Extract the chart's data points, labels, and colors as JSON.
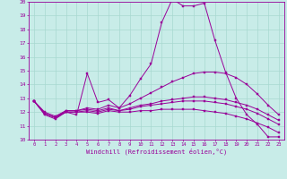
{
  "xlabel": "Windchill (Refroidissement éolien,°C)",
  "background_color": "#c8ece8",
  "line_color": "#990099",
  "grid_color": "#a8d8d0",
  "xlim": [
    -0.5,
    23.5
  ],
  "ylim": [
    10,
    20
  ],
  "xticks": [
    0,
    1,
    2,
    3,
    4,
    5,
    6,
    7,
    8,
    9,
    10,
    11,
    12,
    13,
    14,
    15,
    16,
    17,
    18,
    19,
    20,
    21,
    22,
    23
  ],
  "yticks": [
    10,
    11,
    12,
    13,
    14,
    15,
    16,
    17,
    18,
    19,
    20
  ],
  "lines": [
    [
      12.8,
      11.8,
      11.5,
      12.0,
      11.8,
      14.8,
      12.7,
      12.9,
      12.3,
      13.2,
      14.4,
      15.5,
      18.5,
      20.2,
      19.7,
      19.7,
      19.9,
      17.2,
      14.9,
      13.0,
      11.8,
      11.1,
      10.2,
      10.2
    ],
    [
      12.8,
      11.9,
      11.6,
      12.1,
      12.1,
      12.3,
      12.2,
      12.5,
      12.3,
      12.6,
      13.0,
      13.4,
      13.8,
      14.2,
      14.5,
      14.8,
      14.9,
      14.9,
      14.8,
      14.5,
      14.0,
      13.3,
      12.5,
      11.8
    ],
    [
      12.8,
      11.9,
      11.6,
      12.0,
      12.0,
      12.1,
      12.0,
      12.2,
      12.1,
      12.2,
      12.4,
      12.5,
      12.6,
      12.7,
      12.8,
      12.8,
      12.8,
      12.7,
      12.6,
      12.4,
      12.2,
      11.9,
      11.5,
      11.1
    ],
    [
      12.8,
      12.0,
      11.7,
      12.1,
      12.1,
      12.2,
      12.1,
      12.3,
      12.1,
      12.3,
      12.5,
      12.6,
      12.8,
      12.9,
      13.0,
      13.1,
      13.1,
      13.0,
      12.9,
      12.7,
      12.5,
      12.2,
      11.8,
      11.4
    ],
    [
      12.8,
      11.9,
      11.6,
      12.0,
      12.0,
      12.0,
      11.9,
      12.1,
      12.0,
      12.0,
      12.1,
      12.1,
      12.2,
      12.2,
      12.2,
      12.2,
      12.1,
      12.0,
      11.9,
      11.7,
      11.5,
      11.2,
      10.9,
      10.5
    ]
  ]
}
